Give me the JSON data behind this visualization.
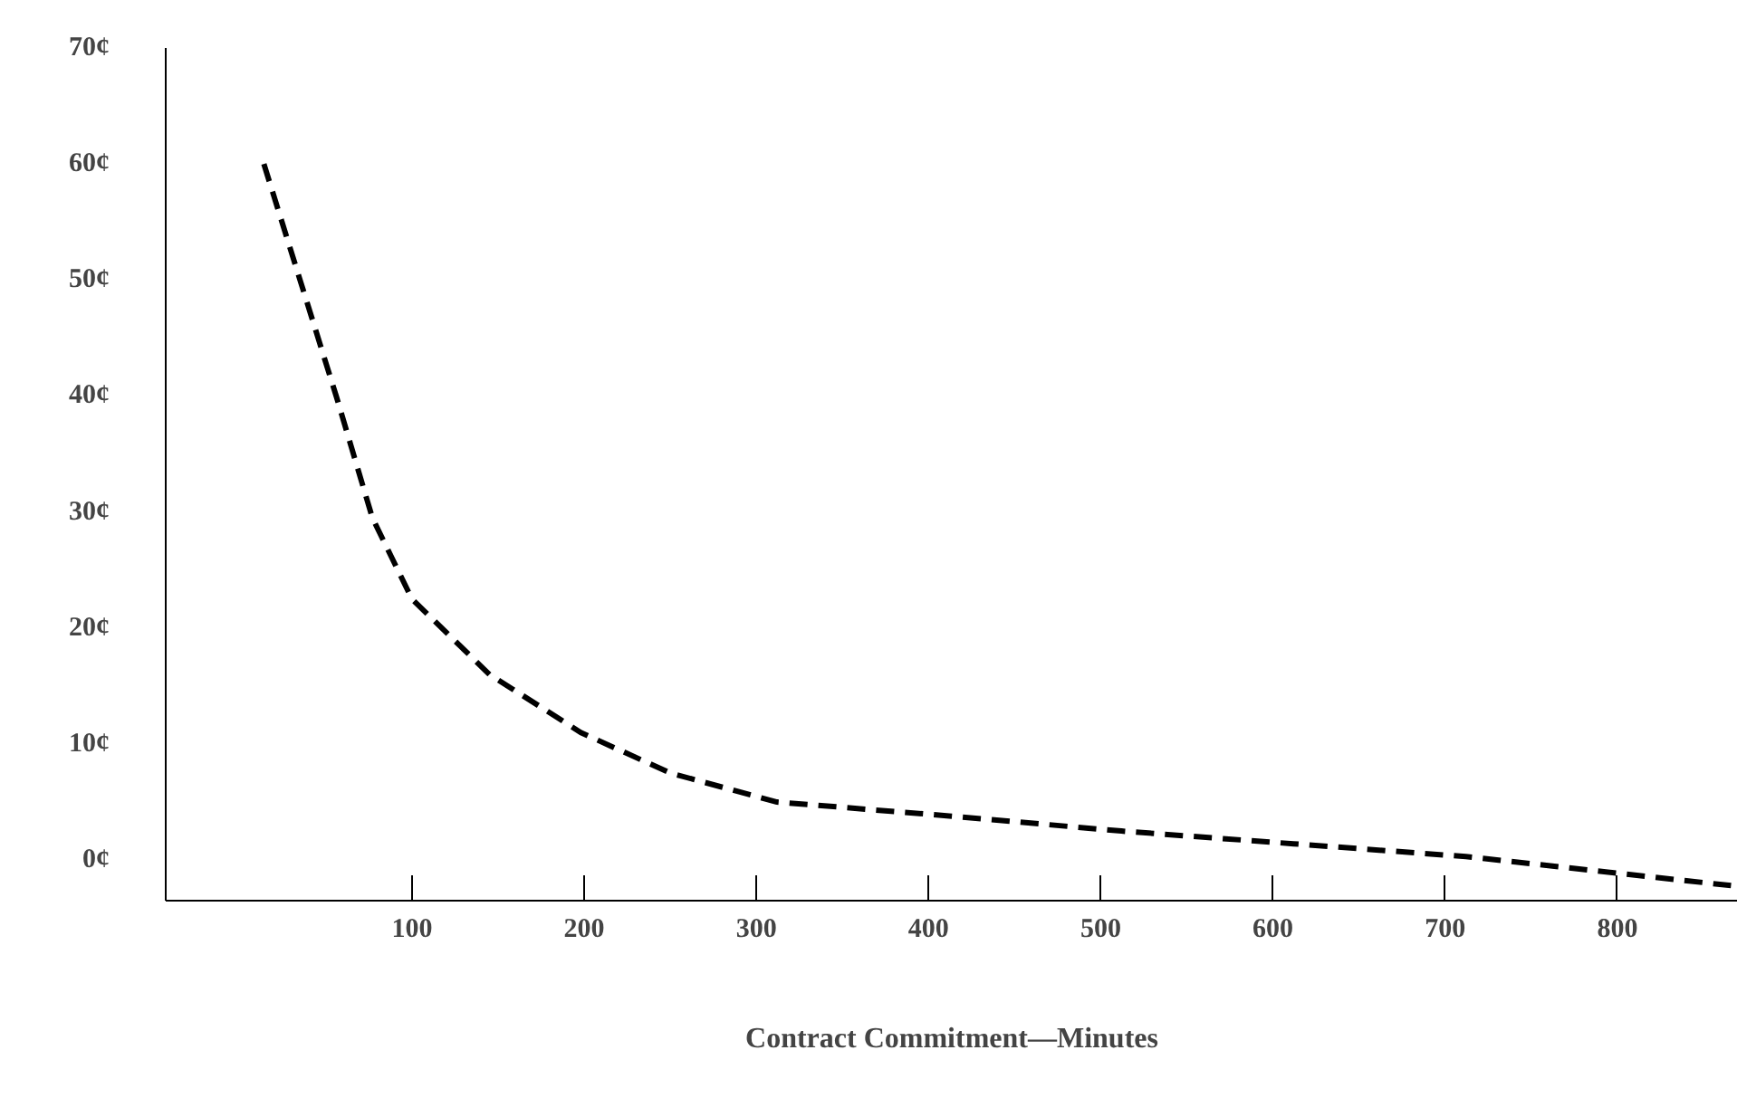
{
  "chart_data": {
    "type": "line",
    "xlabel": "Contract Commitment—Minutes",
    "x": [
      14,
      35,
      56,
      77,
      100,
      145,
      198,
      250,
      312,
      412,
      512,
      612,
      712,
      866
    ],
    "series": [
      {
        "color": "#000000",
        "values": [
          60,
          50,
          40,
          29.5,
          22.5,
          16,
          11,
          7.5,
          5,
          3.8,
          2.5,
          1.4,
          0.3,
          -2.2
        ]
      }
    ],
    "xlim": [
      -43,
      870
    ],
    "ylim": [
      -3.5,
      70
    ],
    "xticks": [
      100,
      200,
      300,
      400,
      500,
      600,
      700,
      800
    ],
    "yticks": [
      {
        "value": 0,
        "label": "0¢"
      },
      {
        "value": 10,
        "label": "10¢"
      },
      {
        "value": 20,
        "label": "20¢"
      },
      {
        "value": 30,
        "label": "30¢"
      },
      {
        "value": 40,
        "label": "40¢"
      },
      {
        "value": 50,
        "label": "50¢"
      },
      {
        "value": 60,
        "label": "60¢"
      },
      {
        "value": 70,
        "label": "70¢"
      }
    ],
    "grid": false,
    "line_style": "dashed"
  }
}
